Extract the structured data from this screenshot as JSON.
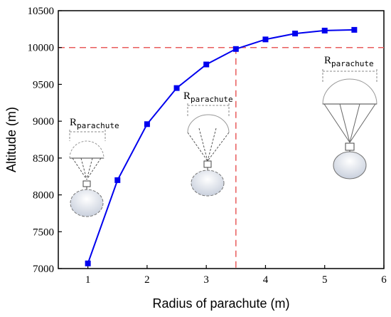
{
  "chart_data": {
    "type": "line",
    "xlabel": "Radius of parachute (m)",
    "ylabel": "Altitude (m)",
    "xlim": [
      0.5,
      6
    ],
    "ylim": [
      7000,
      10500
    ],
    "x_ticks": [
      1,
      2,
      3,
      4,
      5,
      6
    ],
    "y_ticks": [
      7000,
      7500,
      8000,
      8500,
      9000,
      9500,
      10000,
      10500
    ],
    "series": [
      {
        "x": [
          1.0,
          1.5,
          2.0,
          2.5,
          3.0,
          3.5,
          4.0,
          4.5,
          5.0,
          5.5
        ],
        "y": [
          7070,
          8200,
          8960,
          9450,
          9770,
          9980,
          10110,
          10190,
          10230,
          10240
        ],
        "color": "#0000ee",
        "marker": "square"
      }
    ],
    "reference_lines": {
      "horizontal_y": 10000,
      "vertical_x": 3.5,
      "color": "#e85c5c",
      "style": "dashed"
    },
    "annotations": [
      {
        "label": "R",
        "subscript": "parachute"
      },
      {
        "label": "R",
        "subscript": "parachute"
      },
      {
        "label": "R",
        "subscript": "parachute"
      }
    ],
    "grid": false
  }
}
